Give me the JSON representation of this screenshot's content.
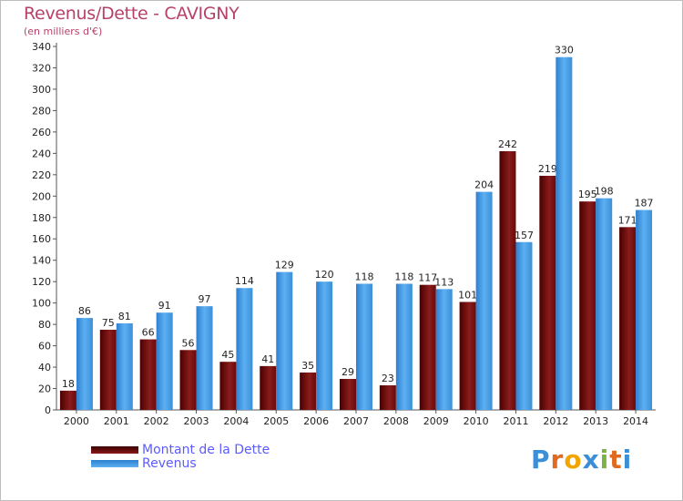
{
  "chart_data": {
    "type": "bar",
    "title": "Revenus/Dette - CAVIGNY",
    "subtitle": "(en milliers d'€)",
    "categories": [
      "2000",
      "2001",
      "2002",
      "2003",
      "2004",
      "2005",
      "2006",
      "2007",
      "2008",
      "2009",
      "2010",
      "2011",
      "2012",
      "2013",
      "2014"
    ],
    "series": [
      {
        "name": "Montant de la Dette",
        "color": "#7a1010",
        "values": [
          18,
          75,
          66,
          56,
          45,
          41,
          35,
          29,
          23,
          117,
          101,
          242,
          219,
          195,
          171
        ]
      },
      {
        "name": "Revenus",
        "color": "#3a8fd8",
        "values": [
          86,
          81,
          91,
          97,
          114,
          129,
          120,
          118,
          118,
          113,
          204,
          157,
          330,
          198,
          187
        ]
      }
    ],
    "ylim": [
      0,
      340
    ],
    "yticks": [
      0,
      20,
      40,
      60,
      80,
      100,
      120,
      140,
      160,
      180,
      200,
      220,
      240,
      260,
      280,
      300,
      320,
      340
    ],
    "grid": false,
    "legend_position": "bottom-left"
  },
  "logo": {
    "text": "Proxiti",
    "letters": [
      "P",
      "r",
      "o",
      "x",
      "i",
      "t",
      "i"
    ],
    "colors": [
      "#3a8fd8",
      "#e06a1f",
      "#f0a500",
      "#3a8fd8",
      "#7cb342",
      "#e06a1f",
      "#3a8fd8"
    ]
  }
}
